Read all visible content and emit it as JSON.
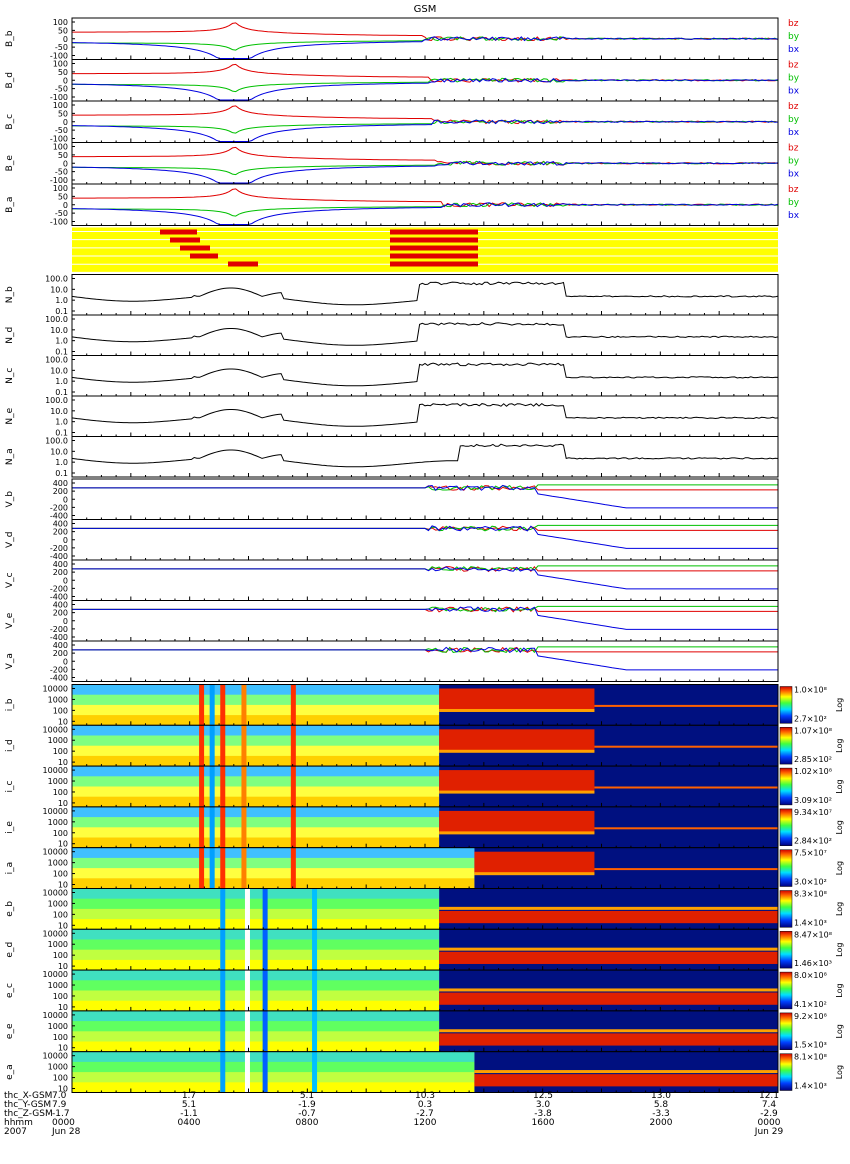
{
  "title": "GSM",
  "chart_data": {
    "type": "stack",
    "title": "GSM",
    "component_labels": [
      "bz",
      "by",
      "bx"
    ],
    "component_colors": [
      "#e00000",
      "#00c000",
      "#0000e0"
    ],
    "b_panels": [
      {
        "ylabel": "B_b",
        "ticks": [
          "100",
          "50",
          "0",
          "-50",
          "-100"
        ],
        "ylim": [
          -130,
          130
        ]
      },
      {
        "ylabel": "B_d",
        "ticks": [
          "100",
          "50",
          "0",
          "-50",
          "-100"
        ],
        "ylim": [
          -130,
          130
        ]
      },
      {
        "ylabel": "B_c",
        "ticks": [
          "100",
          "50",
          "0",
          "-50",
          "-100"
        ],
        "ylim": [
          -130,
          130
        ]
      },
      {
        "ylabel": "B_e",
        "ticks": [
          "100",
          "50",
          "0",
          "-50",
          "-100"
        ],
        "ylim": [
          -130,
          130
        ]
      },
      {
        "ylabel": "B_a",
        "ticks": [
          "100",
          "50",
          "0",
          "-50",
          "-100"
        ],
        "ylim": [
          -130,
          130
        ]
      }
    ],
    "n_panels": [
      {
        "ylabel": "N_b",
        "ticks": [
          "100.0",
          "10.0",
          "1.0",
          "0.1"
        ]
      },
      {
        "ylabel": "N_d",
        "ticks": [
          "100.0",
          "10.0",
          "1.0",
          "0.1"
        ]
      },
      {
        "ylabel": "N_c",
        "ticks": [
          "100.0",
          "10.0",
          "1.0",
          "0.1"
        ]
      },
      {
        "ylabel": "N_e",
        "ticks": [
          "100.0",
          "10.0",
          "1.0",
          "0.1"
        ]
      },
      {
        "ylabel": "N_a",
        "ticks": [
          "100.0",
          "10.0",
          "1.0",
          "0.1"
        ]
      }
    ],
    "v_panels": [
      {
        "ylabel": "V_b",
        "ticks": [
          "400",
          "200",
          "0",
          "-200",
          "-400"
        ]
      },
      {
        "ylabel": "V_d",
        "ticks": [
          "400",
          "200",
          "0",
          "-200",
          "-400"
        ]
      },
      {
        "ylabel": "V_c",
        "ticks": [
          "400",
          "200",
          "0",
          "-200",
          "-400"
        ]
      },
      {
        "ylabel": "V_e",
        "ticks": [
          "400",
          "200",
          "0",
          "-200",
          "-400"
        ]
      },
      {
        "ylabel": "V_a",
        "ticks": [
          "400",
          "200",
          "0",
          "-200",
          "-400"
        ]
      }
    ],
    "spectrogram_ticks": [
      "10000",
      "1000",
      "100",
      "10"
    ],
    "spectrogram_scale_label": "Log",
    "spectrograms": [
      {
        "ylabel": "i_b",
        "cmax": "1.0×10⁸",
        "cmin": "2.7×10²"
      },
      {
        "ylabel": "i_d",
        "cmax": "1.07×10⁸",
        "cmin": "2.85×10²"
      },
      {
        "ylabel": "i_c",
        "cmax": "1.02×10⁸",
        "cmin": "3.09×10²"
      },
      {
        "ylabel": "i_e",
        "cmax": "9.34×10⁷",
        "cmin": "2.84×10²"
      },
      {
        "ylabel": "i_a",
        "cmax": "7.5×10⁷",
        "cmin": "3.0×10²"
      },
      {
        "ylabel": "e_b",
        "cmax": "8.3×10⁸",
        "cmin": "1.4×10³"
      },
      {
        "ylabel": "e_d",
        "cmax": "8.47×10⁸",
        "cmin": "1.46×10³"
      },
      {
        "ylabel": "e_c",
        "cmax": "8.0×10⁸",
        "cmin": "4.1×10²"
      },
      {
        "ylabel": "e_e",
        "cmax": "9.2×10⁸",
        "cmin": "1.5×10³"
      },
      {
        "ylabel": "e_a",
        "cmax": "8.1×10⁸",
        "cmin": "1.4×10³"
      }
    ],
    "x_axis": {
      "row_labels": [
        "thc_X-GSM",
        "thc_Y-GSM",
        "thc_Z-GSM",
        "hhmm",
        "2007"
      ],
      "first_values": [
        "7.0",
        "7.9",
        "-1.7",
        "0000",
        "Jun 28"
      ],
      "ticks": [
        {
          "x": "1.7",
          "y": "5.1",
          "z": "-1.1",
          "t": "0400"
        },
        {
          "x": "5.1",
          "y": "-1.9",
          "z": "-0.7",
          "t": "0800"
        },
        {
          "x": "10.3",
          "y": "0.3",
          "z": "-2.7",
          "t": "1200"
        },
        {
          "x": "12.5",
          "y": "3.0",
          "z": "-3.8",
          "t": "1600"
        },
        {
          "x": "13.0",
          "y": "5.8",
          "z": "-3.3",
          "t": "2000"
        },
        {
          "x": "12.1",
          "y": "7.4",
          "z": "-2.9",
          "t": "0000",
          "date": "Jun 29"
        }
      ]
    }
  }
}
